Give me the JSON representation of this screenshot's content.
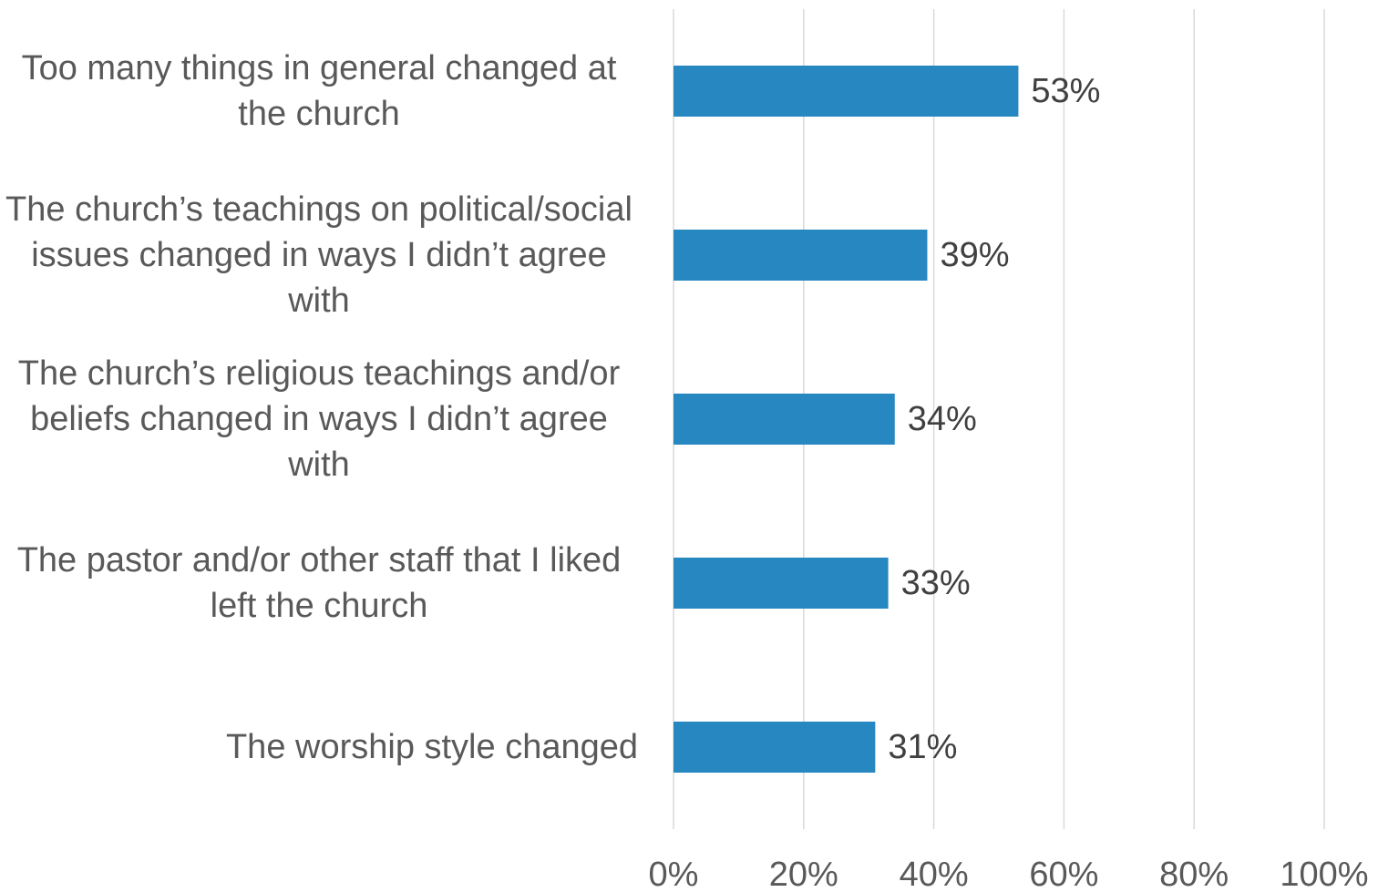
{
  "chart_data": {
    "type": "bar",
    "orientation": "horizontal",
    "categories": [
      "Too many things in general changed at the church",
      "The church’s teachings on political/social issues changed in ways I didn’t agree with",
      "The church’s religious teachings and/or beliefs changed in ways I didn’t agree with",
      "The pastor and/or other staff that I liked left the church",
      "The worship style changed"
    ],
    "values": [
      53,
      39,
      34,
      33,
      31
    ],
    "value_labels": [
      "53%",
      "39%",
      "34%",
      "33%",
      "31%"
    ],
    "color": "#2787c1",
    "xlim": [
      0,
      100
    ],
    "xticks": [
      {
        "value": 0,
        "label": "0%"
      },
      {
        "value": 20,
        "label": "20%"
      },
      {
        "value": 40,
        "label": "40%"
      },
      {
        "value": 60,
        "label": "60%"
      },
      {
        "value": 80,
        "label": "80%"
      },
      {
        "value": 100,
        "label": "100%"
      }
    ],
    "grid": true
  }
}
